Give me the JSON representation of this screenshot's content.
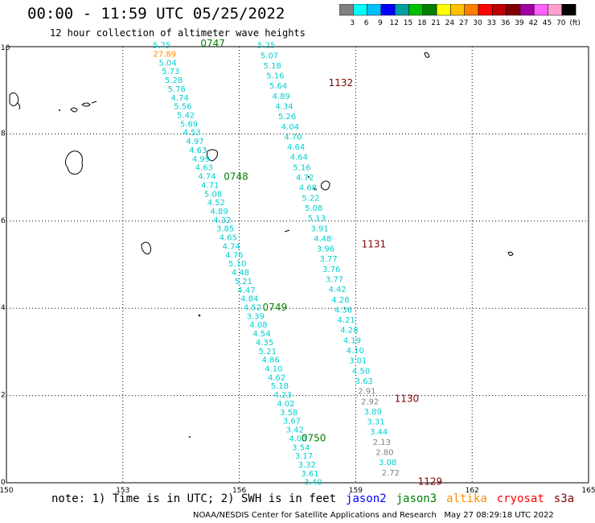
{
  "header": {
    "title": "00:00 - 11:59 UTC 05/25/2022",
    "subtitle": "12 hour collection of altimeter wave heights"
  },
  "colorbar": {
    "colors": [
      "#808080",
      "#00ffff",
      "#00bfff",
      "#0000ff",
      "#00a0a0",
      "#00c000",
      "#008000",
      "#ffff00",
      "#ffc000",
      "#ff8000",
      "#ff0000",
      "#c00000",
      "#800000",
      "#a000a0",
      "#ff60ff",
      "#ffa0d0",
      "#000000"
    ],
    "labels": [
      "3",
      "6",
      "9",
      "12",
      "15",
      "18",
      "21",
      "24",
      "27",
      "30",
      "33",
      "36",
      "39",
      "42",
      "45",
      "70",
      "(ft)"
    ]
  },
  "map": {
    "lon_range": [
      150,
      165
    ],
    "lat_range": [
      0,
      10
    ],
    "x_ticks": [
      "150",
      "153",
      "156",
      "159",
      "162",
      "165"
    ],
    "y_ticks": [
      "0",
      "2",
      "4",
      "6",
      "8",
      "10"
    ],
    "pass_labels": [
      {
        "text": "0747",
        "lon": 155.0,
        "lat": 10.0,
        "color": "#008000"
      },
      {
        "text": "0748",
        "lon": 155.6,
        "lat": 6.95,
        "color": "#008000"
      },
      {
        "text": "0749",
        "lon": 156.6,
        "lat": 3.95,
        "color": "#008000"
      },
      {
        "text": "0750",
        "lon": 157.6,
        "lat": 0.95,
        "color": "#008000"
      },
      {
        "text": "1132",
        "lon": 158.3,
        "lat": 9.1,
        "color": "#800000"
      },
      {
        "text": "1131",
        "lon": 159.15,
        "lat": 5.4,
        "color": "#800000"
      },
      {
        "text": "1130",
        "lon": 160.0,
        "lat": 1.85,
        "color": "#800000"
      },
      {
        "text": "1129",
        "lon": 160.6,
        "lat": -0.05,
        "color": "#800000"
      }
    ],
    "track_a": {
      "color": "#00d0d0",
      "values": [
        "5.75",
        "27.89",
        "5.04",
        "5.73",
        "5.28",
        "5.76",
        "4.74",
        "5.56",
        "5.42",
        "5.69",
        "4.53",
        "4.97",
        "4.63",
        "4.99",
        "4.63",
        "4.74",
        "4.71",
        "5.08",
        "4.52",
        "4.89",
        "4.32",
        "3.85",
        "4.65",
        "4.74",
        "4.76",
        "5.10",
        "4.48",
        "5.21",
        "4.47",
        "4.84",
        "4.52",
        "3.39",
        "4.08",
        "4.54",
        "4.35",
        "5.21",
        "4.86",
        "4.10",
        "4.62",
        "5.18",
        "4.23",
        "4.02",
        "3.58",
        "3.67",
        "3.42",
        "4.03",
        "3.54",
        "3.17",
        "3.32",
        "3.61",
        "3.40"
      ],
      "special_colors": {
        "1": "#ff8c00"
      }
    },
    "track_b": {
      "color": "#00d0d0",
      "values": [
        "5.25",
        "5.07",
        "5.18",
        "5.16",
        "5.64",
        "4.89",
        "4.34",
        "5.26",
        "4.04",
        "4.70",
        "4.64",
        "4.64",
        "5.16",
        "4.72",
        "4.68",
        "5.22",
        "5.08",
        "5.13",
        "3.91",
        "4.48",
        "3.96",
        "3.77",
        "3.76",
        "3.77",
        "4.42",
        "4.28",
        "4.36",
        "4.21",
        "4.28",
        "4.19",
        "4.10",
        "3.01",
        "4.50",
        "3.63",
        "2.91",
        "2.92",
        "3.89",
        "3.31",
        "3.44",
        "2.13",
        "2.80",
        "3.08",
        "2.72"
      ],
      "special_colors": {
        "34": "#808080",
        "35": "#808080",
        "39": "#808080",
        "40": "#808080",
        "42": "#808080"
      }
    }
  },
  "legend": {
    "note": "note: 1) Time is in UTC; 2) SWH is in feet",
    "satellites": [
      {
        "name": "jason2",
        "color": "#0000ff"
      },
      {
        "name": "jason3",
        "color": "#008000"
      },
      {
        "name": "altika",
        "color": "#ff8c00"
      },
      {
        "name": "cryosat",
        "color": "#ff0000"
      },
      {
        "name": "s3a",
        "color": "#800000"
      }
    ]
  },
  "credit": {
    "text": "NOAA/NESDIS Center for Satellite Applications and Research   May 27 08:29:18 UTC 2022"
  }
}
